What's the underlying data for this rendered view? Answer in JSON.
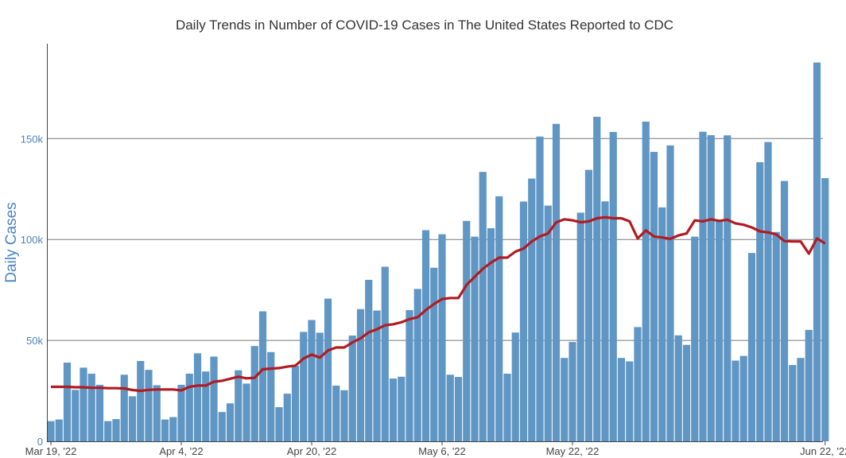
{
  "chart_data": {
    "type": "bar",
    "title": "Daily Trends in Number of COVID-19 Cases in The United States Reported to CDC",
    "xlabel": "",
    "ylabel": "Daily Cases",
    "ylim": [
      0,
      197000
    ],
    "grid": true,
    "y_ticks": [
      {
        "value": 0,
        "label": "0"
      },
      {
        "value": 50000,
        "label": "50k"
      },
      {
        "value": 100000,
        "label": "100k"
      },
      {
        "value": 150000,
        "label": "150k"
      }
    ],
    "x_ticks": [
      {
        "index": 0,
        "label": "Mar 19, '22"
      },
      {
        "index": 16,
        "label": "Apr 4, '22"
      },
      {
        "index": 32,
        "label": "Apr 20, '22"
      },
      {
        "index": 48,
        "label": "May 6, '22"
      },
      {
        "index": 64,
        "label": "May 22, '22"
      },
      {
        "index": 95,
        "label": "Jun 22, '22"
      }
    ],
    "x": [
      "2022-03-19",
      "2022-03-20",
      "2022-03-21",
      "2022-03-22",
      "2022-03-23",
      "2022-03-24",
      "2022-03-25",
      "2022-03-26",
      "2022-03-27",
      "2022-03-28",
      "2022-03-29",
      "2022-03-30",
      "2022-03-31",
      "2022-04-01",
      "2022-04-02",
      "2022-04-03",
      "2022-04-04",
      "2022-04-05",
      "2022-04-06",
      "2022-04-07",
      "2022-04-08",
      "2022-04-09",
      "2022-04-10",
      "2022-04-11",
      "2022-04-12",
      "2022-04-13",
      "2022-04-14",
      "2022-04-15",
      "2022-04-16",
      "2022-04-17",
      "2022-04-18",
      "2022-04-19",
      "2022-04-20",
      "2022-04-21",
      "2022-04-22",
      "2022-04-23",
      "2022-04-24",
      "2022-04-25",
      "2022-04-26",
      "2022-04-27",
      "2022-04-28",
      "2022-04-29",
      "2022-04-30",
      "2022-05-01",
      "2022-05-02",
      "2022-05-03",
      "2022-05-04",
      "2022-05-05",
      "2022-05-06",
      "2022-05-07",
      "2022-05-08",
      "2022-05-09",
      "2022-05-10",
      "2022-05-11",
      "2022-05-12",
      "2022-05-13",
      "2022-05-14",
      "2022-05-15",
      "2022-05-16",
      "2022-05-17",
      "2022-05-18",
      "2022-05-19",
      "2022-05-20",
      "2022-05-21",
      "2022-05-22",
      "2022-05-23",
      "2022-05-24",
      "2022-05-25",
      "2022-05-26",
      "2022-05-27",
      "2022-05-28",
      "2022-05-29",
      "2022-05-30",
      "2022-05-31",
      "2022-06-01",
      "2022-06-02",
      "2022-06-03",
      "2022-06-04",
      "2022-06-05",
      "2022-06-06",
      "2022-06-07",
      "2022-06-08",
      "2022-06-09",
      "2022-06-10",
      "2022-06-11",
      "2022-06-12",
      "2022-06-13",
      "2022-06-14",
      "2022-06-15",
      "2022-06-16",
      "2022-06-17",
      "2022-06-18",
      "2022-06-19",
      "2022-06-20",
      "2022-06-21",
      "2022-06-22"
    ],
    "series": [
      {
        "name": "Daily Cases",
        "type": "bar",
        "color": "#6096c4",
        "values": [
          10000,
          10800,
          39000,
          25500,
          36500,
          33500,
          28000,
          10000,
          11000,
          33000,
          22300,
          39800,
          35400,
          27800,
          10800,
          12000,
          28000,
          33500,
          43600,
          34600,
          42000,
          14500,
          18800,
          35200,
          28600,
          47200,
          64400,
          44200,
          16900,
          23600,
          37400,
          54200,
          60100,
          53800,
          70700,
          27600,
          25300,
          52400,
          65500,
          80000,
          64800,
          86500,
          31100,
          32000,
          65000,
          75500,
          104600,
          86000,
          102600,
          33000,
          31900,
          109200,
          101400,
          133500,
          105600,
          121400,
          33500,
          53900,
          118800,
          130200,
          151000,
          116800,
          157300,
          41300,
          49200,
          113300,
          134500,
          160800,
          118900,
          153300,
          41300,
          39600,
          56600,
          158400,
          143400,
          115900,
          146600,
          52500,
          47800,
          101400,
          153400,
          151700,
          109000,
          151600,
          40000,
          42300,
          93300,
          138300,
          148300,
          103700,
          129000,
          37800,
          41300,
          55200,
          187700,
          130400
        ]
      },
      {
        "name": "7-Day Moving Average",
        "type": "line",
        "color": "#b11b22",
        "values": [
          27000,
          27000,
          27000,
          26800,
          26800,
          26500,
          26500,
          26300,
          26300,
          26200,
          25400,
          25000,
          25500,
          25700,
          25700,
          25700,
          25200,
          27000,
          27600,
          27600,
          29500,
          30000,
          31000,
          32000,
          31200,
          31500,
          35700,
          36000,
          36300,
          37000,
          37500,
          41000,
          43000,
          41500,
          45000,
          46500,
          46500,
          49000,
          51000,
          54000,
          55500,
          57500,
          58000,
          59000,
          60500,
          61500,
          65000,
          68000,
          70500,
          71000,
          71000,
          77500,
          81500,
          85500,
          88500,
          91000,
          91000,
          94000,
          95500,
          99000,
          101500,
          103000,
          108500,
          110000,
          109500,
          108500,
          109000,
          110500,
          111000,
          110500,
          110500,
          109000,
          100500,
          104500,
          101500,
          101000,
          100300,
          102000,
          103000,
          109500,
          109000,
          110000,
          109200,
          109800,
          108000,
          107300,
          106000,
          104000,
          103500,
          102500,
          99200,
          99000,
          99000,
          93000,
          100500,
          98000
        ]
      }
    ]
  }
}
